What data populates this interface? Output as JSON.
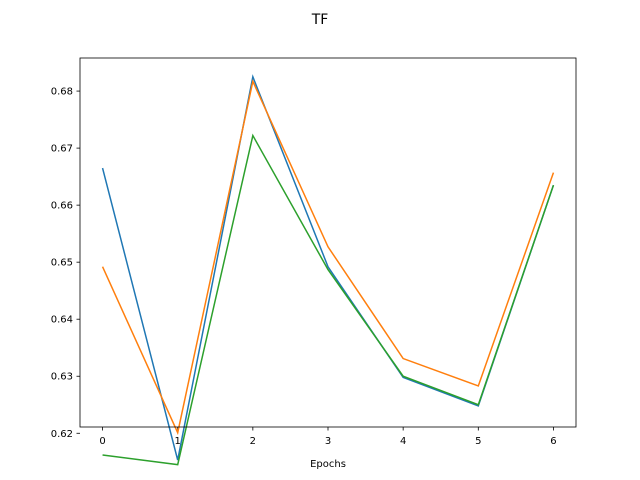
{
  "chart_data": {
    "type": "line",
    "title": "TF",
    "xlabel": "Epochs",
    "ylabel": "",
    "x": [
      0,
      1,
      2,
      3,
      4,
      5,
      6
    ],
    "xlim": [
      -0.3,
      6.3
    ],
    "ylim": [
      0.6211,
      0.6858
    ],
    "xticks": [
      0,
      1,
      2,
      3,
      4,
      5,
      6
    ],
    "yticks": [
      0.62,
      0.63,
      0.64,
      0.65,
      0.66,
      0.67,
      0.68
    ],
    "grid": false,
    "legend": false,
    "series": [
      {
        "color": "#1f77b4",
        "values": [
          0.6665,
          0.6153,
          0.6825,
          0.6492,
          0.6298,
          0.6248,
          0.6635
        ]
      },
      {
        "color": "#ff7f0e",
        "values": [
          0.6492,
          0.6201,
          0.6817,
          0.6527,
          0.6331,
          0.6283,
          0.6657
        ]
      },
      {
        "color": "#2ca02c",
        "values": [
          0.6162,
          0.6145,
          0.6722,
          0.6487,
          0.63,
          0.625,
          0.6635
        ]
      }
    ]
  }
}
